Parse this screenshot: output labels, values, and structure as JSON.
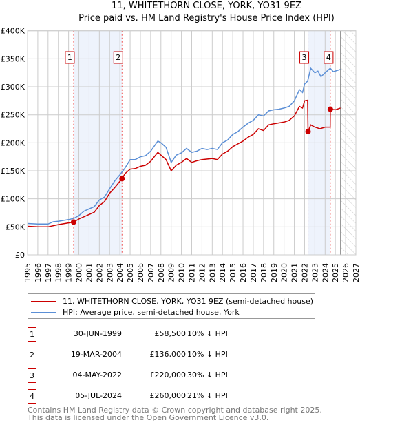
{
  "chart_data": {
    "type": "line",
    "title": "11, WHITETHORN CLOSE, YORK, YO31 9EZ",
    "subtitle": "Price paid vs. HM Land Registry's House Price Index (HPI)",
    "xlim": [
      1995,
      2027
    ],
    "ylim": [
      0,
      400000
    ],
    "x_ticks": [
      "1995",
      "1996",
      "1997",
      "1998",
      "1999",
      "2000",
      "2001",
      "2002",
      "2003",
      "2004",
      "2005",
      "2006",
      "2007",
      "2008",
      "2009",
      "2010",
      "2011",
      "2012",
      "2013",
      "2014",
      "2015",
      "2016",
      "2017",
      "2018",
      "2019",
      "2020",
      "2021",
      "2022",
      "2023",
      "2024",
      "2025",
      "2026",
      "2027"
    ],
    "y_ticks": [
      {
        "v": 0,
        "label": "£0"
      },
      {
        "v": 50000,
        "label": "£50K"
      },
      {
        "v": 100000,
        "label": "£100K"
      },
      {
        "v": 150000,
        "label": "£150K"
      },
      {
        "v": 200000,
        "label": "£200K"
      },
      {
        "v": 250000,
        "label": "£250K"
      },
      {
        "v": 300000,
        "label": "£300K"
      },
      {
        "v": 350000,
        "label": "£350K"
      },
      {
        "v": 400000,
        "label": "£400K"
      }
    ],
    "grid": true,
    "shaded_ranges": [
      [
        1999.49,
        2004.21
      ],
      [
        2022.34,
        2024.51
      ]
    ],
    "forecast_from": 2025.5,
    "series": [
      {
        "name": "11, WHITETHORN CLOSE, YORK, YO31 9EZ (semi-detached house)",
        "color": "#cc0000",
        "x": [
          1995,
          1996,
          1997,
          1998,
          1999,
          1999.49,
          2000,
          2001,
          2001.5,
          2002,
          2002.5,
          2003,
          2003.5,
          2004.21,
          2004.5,
          2005,
          2005.5,
          2006,
          2006.5,
          2007,
          2007.7,
          2008,
          2008.5,
          2009,
          2009.5,
          2010,
          2010.5,
          2011,
          2011.5,
          2012,
          2013,
          2013.5,
          2014,
          2014.5,
          2015,
          2016,
          2016.5,
          2017,
          2017.5,
          2018,
          2018.5,
          2019,
          2020,
          2020.5,
          2021,
          2021.5,
          2021.8,
          2022,
          2022.3,
          2022.34,
          2022.6,
          2023,
          2023.5,
          2024,
          2024.5,
          2024.51,
          2025,
          2025.5
        ],
        "y": [
          51000,
          50000,
          50000,
          54000,
          57000,
          58500,
          64000,
          72000,
          76000,
          88000,
          95000,
          110000,
          120000,
          136000,
          145000,
          153000,
          154000,
          158000,
          160000,
          167000,
          183000,
          178000,
          170000,
          150000,
          160000,
          165000,
          172000,
          165000,
          168000,
          170000,
          172000,
          170000,
          180000,
          185000,
          193000,
          203000,
          210000,
          215000,
          225000,
          222000,
          232000,
          234000,
          237000,
          240000,
          248000,
          265000,
          262000,
          275000,
          276000,
          220000,
          232000,
          228000,
          225000,
          228000,
          228000,
          260000,
          259000,
          262000
        ]
      },
      {
        "name": "HPI: Average price, semi-detached house, York",
        "color": "#5b8fd6",
        "x": [
          1995,
          1996,
          1997,
          1997.5,
          1998,
          1999,
          1999.5,
          2000,
          2000.5,
          2001,
          2001.5,
          2002,
          2002.5,
          2003,
          2003.5,
          2004,
          2004.5,
          2005,
          2005.5,
          2006,
          2006.5,
          2007,
          2007.5,
          2007.7,
          2008,
          2008.5,
          2009,
          2009.5,
          2010,
          2010.5,
          2011,
          2011.5,
          2012,
          2012.5,
          2013,
          2013.5,
          2014,
          2014.5,
          2015,
          2015.5,
          2016,
          2016.5,
          2017,
          2017.5,
          2018,
          2018.5,
          2019,
          2019.5,
          2020,
          2020.5,
          2021,
          2021.5,
          2021.8,
          2022,
          2022.3,
          2022.6,
          2023,
          2023.3,
          2023.6,
          2024,
          2024.5,
          2024.8,
          2025.5
        ],
        "y": [
          56000,
          55000,
          55000,
          59000,
          60000,
          63000,
          65000,
          70000,
          78000,
          82000,
          86000,
          98000,
          103000,
          118000,
          132000,
          143000,
          155000,
          170000,
          170000,
          175000,
          177000,
          185000,
          198000,
          203000,
          200000,
          192000,
          165000,
          178000,
          182000,
          190000,
          183000,
          185000,
          190000,
          188000,
          190000,
          188000,
          200000,
          205000,
          215000,
          220000,
          228000,
          235000,
          240000,
          250000,
          248000,
          257000,
          259000,
          260000,
          262000,
          265000,
          275000,
          295000,
          290000,
          305000,
          310000,
          333000,
          325000,
          328000,
          318000,
          325000,
          333000,
          327000,
          331000
        ]
      }
    ],
    "transactions": [
      {
        "id": "1",
        "date": "30-JUN-1999",
        "x": 1999.49,
        "price": 58500,
        "price_label": "£58,500",
        "hpi": "10% ↓ HPI"
      },
      {
        "id": "2",
        "date": "19-MAR-2004",
        "x": 2004.21,
        "price": 136000,
        "price_label": "£136,000",
        "hpi": "10% ↓ HPI"
      },
      {
        "id": "3",
        "date": "04-MAY-2022",
        "x": 2022.34,
        "price": 220000,
        "price_label": "£220,000",
        "hpi": "30% ↓ HPI"
      },
      {
        "id": "4",
        "date": "05-JUL-2024",
        "x": 2024.51,
        "price": 260000,
        "price_label": "£260,000",
        "hpi": "21% ↓ HPI"
      }
    ]
  },
  "footer": {
    "line1": "Contains HM Land Registry data © Crown copyright and database right 2025.",
    "line2": "This data is licensed under the Open Government Licence v3.0."
  }
}
